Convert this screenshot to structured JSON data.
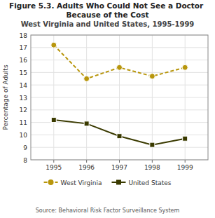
{
  "chart_data": {
    "type": "line",
    "title": "Figure 5.3. Adults Who Could Not See a Doctor Because of the Cost",
    "subtitle": "West Virginia and United States, 1995-1999",
    "source": "Source: Behavioral Risk Factor Surveillance System",
    "y_label": "Percentage of Adults",
    "x": [
      1995,
      1996,
      1997,
      1998,
      1999
    ],
    "xlim": [
      1994.3,
      1999.7
    ],
    "xticks": [
      1995,
      1996,
      1997,
      1998,
      1999
    ],
    "ylim": [
      8,
      18
    ],
    "yticks": [
      8,
      9,
      10,
      11,
      12,
      13,
      14,
      15,
      16,
      17,
      18
    ],
    "grid": true,
    "legend": "bottom",
    "series": [
      {
        "name": "West Virginia",
        "color": "#B8960C",
        "marker": "circle",
        "line_style": "dashed",
        "values": [
          17.2,
          14.5,
          15.4,
          14.7,
          15.4
        ]
      },
      {
        "name": "United States",
        "color": "#3A3A00",
        "marker": "square",
        "line_style": "solid",
        "values": [
          11.2,
          10.9,
          9.9,
          9.2,
          9.7
        ]
      }
    ]
  }
}
